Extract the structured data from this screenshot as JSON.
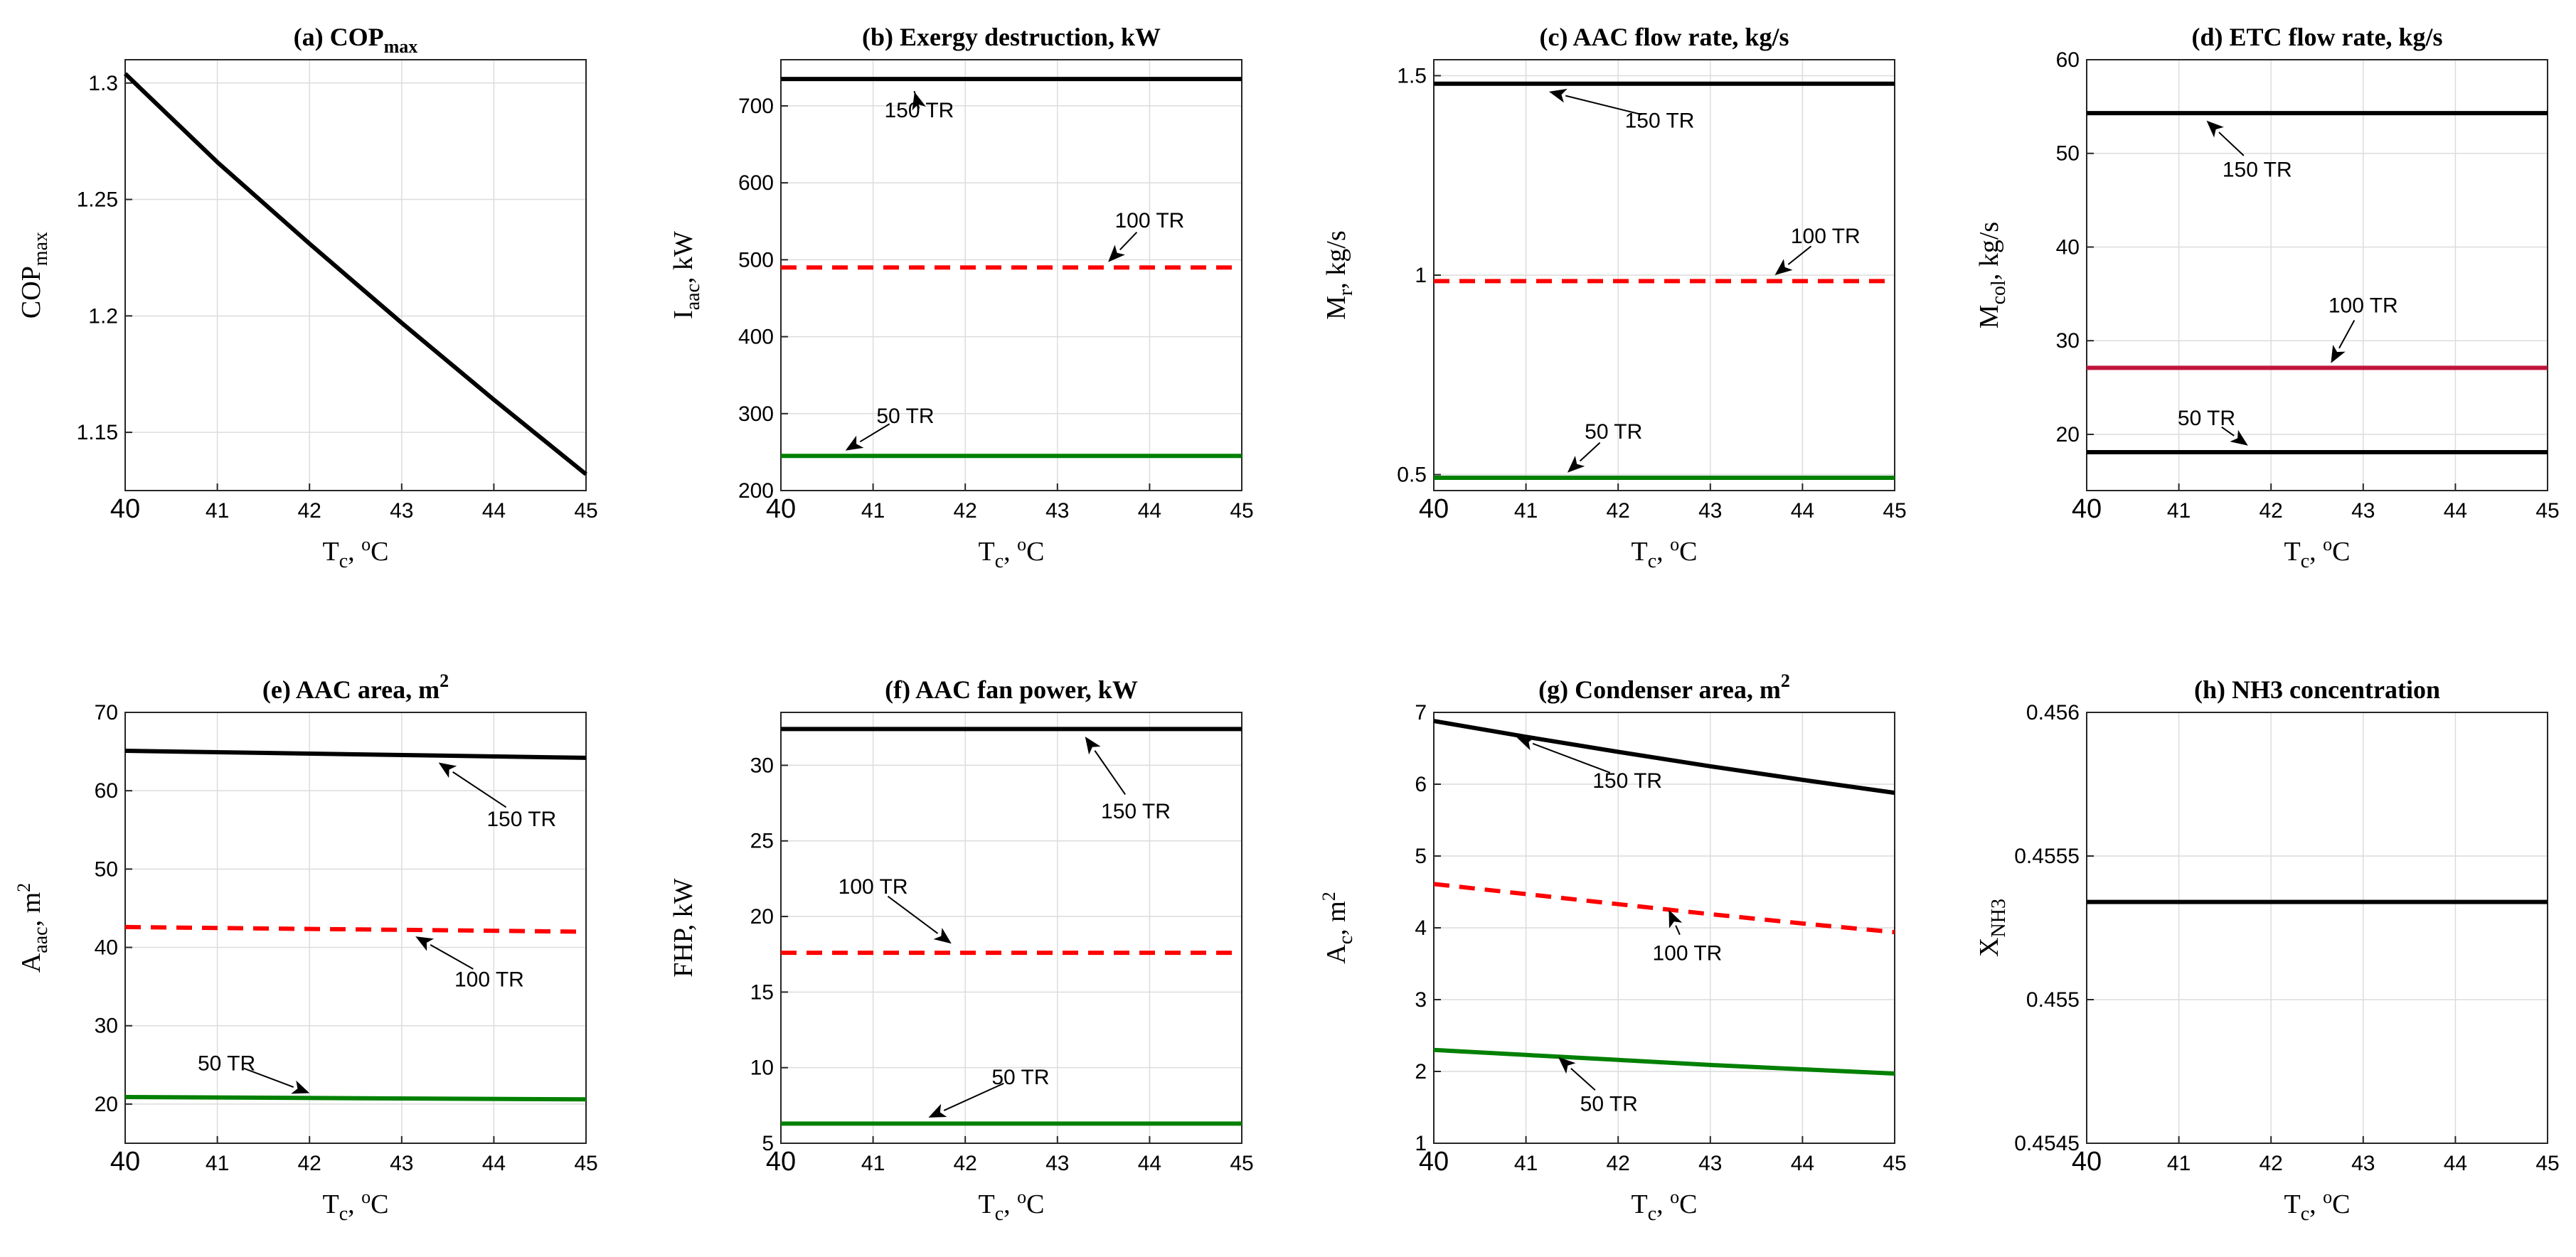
{
  "chart_data": [
    {
      "id": "a",
      "type": "line",
      "title": "(a) COP",
      "title_sub": "max",
      "xlabel": "T",
      "xlabel_sub": "c",
      "xlabel_unit": ", ",
      "xlabel_sup": "o",
      "xlabel_unit2": "C",
      "ylabel": "COP",
      "ylabel_sub": "max",
      "ylabel_unit": "",
      "xlim": [
        40,
        45
      ],
      "ylim": [
        1.125,
        1.31
      ],
      "xticks": [
        "40",
        "41",
        "42",
        "43",
        "44",
        "45"
      ],
      "yticks": [
        {
          "v": 1.15,
          "label": "1.15"
        },
        {
          "v": 1.2,
          "label": "1.2"
        },
        {
          "v": 1.25,
          "label": "1.25"
        },
        {
          "v": 1.3,
          "label": "1.3"
        }
      ],
      "series": [
        {
          "name": "COPmax",
          "color": "#000000",
          "dash": "",
          "x": [
            40,
            41,
            42,
            43,
            44,
            45
          ],
          "y": [
            1.304,
            1.266,
            1.231,
            1.197,
            1.164,
            1.132
          ]
        }
      ],
      "annotations": []
    },
    {
      "id": "b",
      "type": "line",
      "title": "(b) Exergy destruction, kW",
      "title_sub": "",
      "xlabel": "T",
      "xlabel_sub": "c",
      "xlabel_unit": ", ",
      "xlabel_sup": "o",
      "xlabel_unit2": "C",
      "ylabel": "I",
      "ylabel_sub": "aac",
      "ylabel_unit": ", kW",
      "xlim": [
        40,
        45
      ],
      "ylim": [
        200,
        760
      ],
      "xticks": [
        "40",
        "41",
        "42",
        "43",
        "44",
        "45"
      ],
      "yticks": [
        {
          "v": 200,
          "label": "200"
        },
        {
          "v": 300,
          "label": "300"
        },
        {
          "v": 400,
          "label": "400"
        },
        {
          "v": 500,
          "label": "500"
        },
        {
          "v": 600,
          "label": "600"
        },
        {
          "v": 700,
          "label": "700"
        }
      ],
      "series": [
        {
          "name": "150 TR",
          "color": "#000000",
          "dash": "",
          "x": [
            40,
            45
          ],
          "y": [
            735,
            735
          ]
        },
        {
          "name": "100 TR",
          "color": "#ff0000",
          "dash": "22,14",
          "x": [
            40,
            45
          ],
          "y": [
            490,
            490
          ]
        },
        {
          "name": "50 TR",
          "color": "#008000",
          "dash": "",
          "x": [
            40,
            45
          ],
          "y": [
            245,
            245
          ]
        }
      ],
      "annotations": [
        {
          "text": "150 TR",
          "x": 41.5,
          "y": 685,
          "tx": 41.45,
          "ty": 718
        },
        {
          "text": "100 TR",
          "x": 44.0,
          "y": 542,
          "tx": 43.55,
          "ty": 497
        },
        {
          "text": "50 TR",
          "x": 41.35,
          "y": 288,
          "tx": 40.7,
          "ty": 252
        }
      ]
    },
    {
      "id": "c",
      "type": "line",
      "title": "(c) AAC flow rate, kg/s",
      "title_sub": "",
      "xlabel": "T",
      "xlabel_sub": "c",
      "xlabel_unit": ", ",
      "xlabel_sup": "o",
      "xlabel_unit2": "C",
      "ylabel": "M",
      "ylabel_sub": "r",
      "ylabel_unit": ", kg/s",
      "xlim": [
        40,
        45
      ],
      "ylim": [
        0.46,
        1.54
      ],
      "xticks": [
        "40",
        "41",
        "42",
        "43",
        "44",
        "45"
      ],
      "yticks": [
        {
          "v": 0.5,
          "label": "0.5"
        },
        {
          "v": 1.0,
          "label": "1"
        },
        {
          "v": 1.5,
          "label": "1.5"
        }
      ],
      "series": [
        {
          "name": "150 TR",
          "color": "#000000",
          "dash": "",
          "x": [
            40,
            45
          ],
          "y": [
            1.48,
            1.48
          ]
        },
        {
          "name": "100 TR",
          "color": "#ff0000",
          "dash": "22,14",
          "x": [
            40,
            45
          ],
          "y": [
            0.985,
            0.985
          ]
        },
        {
          "name": "50 TR",
          "color": "#008000",
          "dash": "",
          "x": [
            40,
            45
          ],
          "y": [
            0.492,
            0.492
          ]
        }
      ],
      "annotations": [
        {
          "text": "150 TR",
          "x": 42.45,
          "y": 1.37,
          "tx": 41.25,
          "ty": 1.46
        },
        {
          "text": "100 TR",
          "x": 44.25,
          "y": 1.08,
          "tx": 43.7,
          "ty": 1.0
        },
        {
          "text": "50 TR",
          "x": 41.95,
          "y": 0.59,
          "tx": 41.45,
          "ty": 0.505
        }
      ]
    },
    {
      "id": "d",
      "type": "line",
      "title": "(d) ETC flow rate, kg/s",
      "title_sub": "",
      "xlabel": "T",
      "xlabel_sub": "c",
      "xlabel_unit": ", ",
      "xlabel_sup": "o",
      "xlabel_unit2": "C",
      "ylabel": "M",
      "ylabel_sub": "col",
      "ylabel_unit": ", kg/s",
      "xlim": [
        40,
        45
      ],
      "ylim": [
        14,
        60
      ],
      "xticks": [
        "40",
        "41",
        "42",
        "43",
        "44",
        "45"
      ],
      "yticks": [
        {
          "v": 20,
          "label": "20"
        },
        {
          "v": 30,
          "label": "30"
        },
        {
          "v": 40,
          "label": "40"
        },
        {
          "v": 50,
          "label": "50"
        },
        {
          "v": 60,
          "label": "60"
        }
      ],
      "series": [
        {
          "name": "150 TR",
          "color": "#000000",
          "dash": "",
          "x": [
            40,
            45
          ],
          "y": [
            54.3,
            54.3
          ]
        },
        {
          "name": "100 TR",
          "color": "#c0143c",
          "dash": "",
          "x": [
            40,
            45
          ],
          "y": [
            27.1,
            27.1
          ]
        },
        {
          "name": "50 TR",
          "color": "#000000",
          "dash": "",
          "x": [
            40,
            45
          ],
          "y": [
            18.1,
            18.1
          ]
        }
      ],
      "annotations": [
        {
          "text": "150 TR",
          "x": 41.85,
          "y": 47.5,
          "tx": 41.3,
          "ty": 53.5
        },
        {
          "text": "100 TR",
          "x": 43.0,
          "y": 33.0,
          "tx": 42.65,
          "ty": 27.6
        },
        {
          "text": "50 TR",
          "x": 41.3,
          "y": 21.0,
          "tx": 41.75,
          "ty": 18.8
        }
      ]
    },
    {
      "id": "e",
      "type": "line",
      "title": "(e) AAC area, m",
      "title_sub": "",
      "title_sup": "2",
      "xlabel": "T",
      "xlabel_sub": "c",
      "xlabel_unit": ", ",
      "xlabel_sup": "o",
      "xlabel_unit2": "C",
      "ylabel": "A",
      "ylabel_sub": "aac",
      "ylabel_unit": ", m",
      "ylabel_sup": "2",
      "xlim": [
        40,
        45
      ],
      "ylim": [
        15,
        70
      ],
      "xticks": [
        "40",
        "41",
        "42",
        "43",
        "44",
        "45"
      ],
      "yticks": [
        {
          "v": 20,
          "label": "20"
        },
        {
          "v": 30,
          "label": "30"
        },
        {
          "v": 40,
          "label": "40"
        },
        {
          "v": 50,
          "label": "50"
        },
        {
          "v": 60,
          "label": "60"
        },
        {
          "v": 70,
          "label": "70"
        }
      ],
      "series": [
        {
          "name": "150 TR",
          "color": "#000000",
          "dash": "",
          "x": [
            40,
            45
          ],
          "y": [
            65.1,
            64.2
          ]
        },
        {
          "name": "100 TR",
          "color": "#ff0000",
          "dash": "22,14",
          "x": [
            40,
            45
          ],
          "y": [
            42.6,
            42.0
          ]
        },
        {
          "name": "50 TR",
          "color": "#008000",
          "dash": "",
          "x": [
            40,
            45
          ],
          "y": [
            20.9,
            20.6
          ]
        }
      ],
      "annotations": [
        {
          "text": "150 TR",
          "x": 44.3,
          "y": 55.5,
          "tx": 43.4,
          "ty": 63.6
        },
        {
          "text": "100 TR",
          "x": 43.95,
          "y": 35.0,
          "tx": 43.15,
          "ty": 41.4
        },
        {
          "text": "50 TR",
          "x": 41.1,
          "y": 24.3,
          "tx": 42.0,
          "ty": 21.4
        }
      ]
    },
    {
      "id": "f",
      "type": "line",
      "title": "(f) AAC fan power, kW",
      "title_sub": "",
      "xlabel": "T",
      "xlabel_sub": "c",
      "xlabel_unit": ", ",
      "xlabel_sup": "o",
      "xlabel_unit2": "C",
      "ylabel": "FHP",
      "ylabel_sub": "",
      "ylabel_unit": ", kW",
      "xlim": [
        40,
        45
      ],
      "ylim": [
        5,
        33.5
      ],
      "xticks": [
        "40",
        "41",
        "42",
        "43",
        "44",
        "45"
      ],
      "yticks": [
        {
          "v": 5,
          "label": "5"
        },
        {
          "v": 10,
          "label": "10"
        },
        {
          "v": 15,
          "label": "15"
        },
        {
          "v": 20,
          "label": "20"
        },
        {
          "v": 25,
          "label": "25"
        },
        {
          "v": 30,
          "label": "30"
        }
      ],
      "series": [
        {
          "name": "150 TR",
          "color": "#000000",
          "dash": "",
          "x": [
            40,
            45
          ],
          "y": [
            32.4,
            32.4
          ]
        },
        {
          "name": "100 TR",
          "color": "#ff0000",
          "dash": "22,14",
          "x": [
            40,
            45
          ],
          "y": [
            17.6,
            17.6
          ]
        },
        {
          "name": "50 TR",
          "color": "#008000",
          "dash": "",
          "x": [
            40,
            45
          ],
          "y": [
            6.3,
            6.3
          ]
        }
      ],
      "annotations": [
        {
          "text": "150 TR",
          "x": 43.85,
          "y": 26.5,
          "tx": 43.3,
          "ty": 31.9
        },
        {
          "text": "100 TR",
          "x": 41.0,
          "y": 21.5,
          "tx": 41.85,
          "ty": 18.2
        },
        {
          "text": "50 TR",
          "x": 42.6,
          "y": 8.9,
          "tx": 41.6,
          "ty": 6.7
        }
      ]
    },
    {
      "id": "g",
      "type": "line",
      "title": "(g) Condenser area, m",
      "title_sub": "",
      "title_sup": "2",
      "xlabel": "T",
      "xlabel_sub": "c",
      "xlabel_unit": ", ",
      "xlabel_sup": "o",
      "xlabel_unit2": "C",
      "ylabel": "A",
      "ylabel_sub": "c",
      "ylabel_unit": ", m",
      "ylabel_sup": "2",
      "xlim": [
        40,
        45
      ],
      "ylim": [
        1,
        7
      ],
      "xticks": [
        "40",
        "41",
        "42",
        "43",
        "44",
        "45"
      ],
      "yticks": [
        {
          "v": 1,
          "label": "1"
        },
        {
          "v": 2,
          "label": "2"
        },
        {
          "v": 3,
          "label": "3"
        },
        {
          "v": 4,
          "label": "4"
        },
        {
          "v": 5,
          "label": "5"
        },
        {
          "v": 6,
          "label": "6"
        },
        {
          "v": 7,
          "label": "7"
        }
      ],
      "series": [
        {
          "name": "150 TR",
          "color": "#000000",
          "dash": "",
          "x": [
            40,
            41,
            42,
            43,
            44,
            45
          ],
          "y": [
            6.88,
            6.66,
            6.45,
            6.25,
            6.06,
            5.88
          ]
        },
        {
          "name": "100 TR",
          "color": "#ff0000",
          "dash": "22,14",
          "x": [
            40,
            41,
            42,
            43,
            44,
            45
          ],
          "y": [
            4.61,
            4.47,
            4.33,
            4.19,
            4.06,
            3.94
          ]
        },
        {
          "name": "50 TR",
          "color": "#008000",
          "dash": "",
          "x": [
            40,
            41,
            42,
            43,
            44,
            45
          ],
          "y": [
            2.3,
            2.23,
            2.16,
            2.09,
            2.03,
            1.97
          ]
        }
      ],
      "annotations": [
        {
          "text": "150 TR",
          "x": 42.1,
          "y": 5.95,
          "tx": 40.9,
          "ty": 6.65
        },
        {
          "text": "100 TR",
          "x": 42.75,
          "y": 3.55,
          "tx": 42.55,
          "ty": 4.25
        },
        {
          "text": "50 TR",
          "x": 41.9,
          "y": 1.45,
          "tx": 41.35,
          "ty": 2.2
        }
      ]
    },
    {
      "id": "h",
      "type": "line",
      "title": "(h) NH3 concentration",
      "title_sub": "",
      "xlabel": "T",
      "xlabel_sub": "c",
      "xlabel_unit": ", ",
      "xlabel_sup": "o",
      "xlabel_unit2": "C",
      "ylabel": "X",
      "ylabel_sub": "NH3",
      "ylabel_unit": "",
      "xlim": [
        40,
        45
      ],
      "ylim": [
        0.4545,
        0.456
      ],
      "xticks": [
        "40",
        "41",
        "42",
        "43",
        "44",
        "45"
      ],
      "yticks": [
        {
          "v": 0.4545,
          "label": "0.4545"
        },
        {
          "v": 0.455,
          "label": "0.455"
        },
        {
          "v": 0.4555,
          "label": "0.4555"
        },
        {
          "v": 0.456,
          "label": "0.456"
        }
      ],
      "series": [
        {
          "name": "XNH3",
          "color": "#000000",
          "dash": "",
          "x": [
            40,
            45
          ],
          "y": [
            0.45534,
            0.45534
          ]
        }
      ],
      "annotations": []
    }
  ]
}
